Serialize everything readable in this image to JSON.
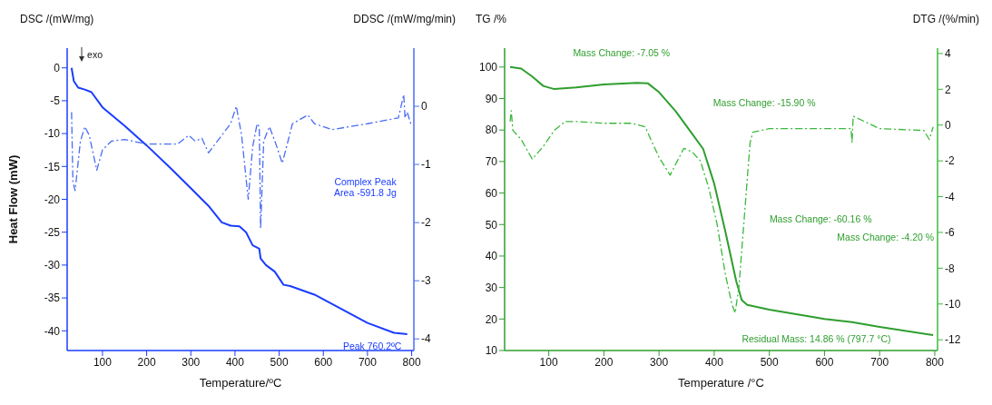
{
  "chart_data": [
    {
      "type": "line",
      "xlabel": "Temperature/ºC",
      "ylabel": "Heat Flow (mW)",
      "y2label": "DDSC /(mW/mg/min)",
      "xlim": [
        20,
        805
      ],
      "xticks": [
        100,
        200,
        300,
        400,
        500,
        600,
        700,
        800
      ],
      "ylim": [
        -43,
        3
      ],
      "yticks": [
        0,
        -5,
        -10,
        -15,
        -20,
        -25,
        -30,
        -35,
        -40
      ],
      "y2lim": [
        -4.2,
        1
      ],
      "y2ticks": [
        0,
        -1,
        -2,
        -3,
        -4
      ],
      "series": [
        {
          "color": "#1a3cff",
          "line_style": "solid",
          "x": [
            30,
            35,
            45,
            60,
            75,
            100,
            150,
            200,
            250,
            300,
            340,
            370,
            390,
            410,
            425,
            440,
            455,
            458,
            470,
            490,
            510,
            525,
            580,
            650,
            700,
            760,
            790
          ],
          "values": [
            0,
            -2,
            -3,
            -3.3,
            -3.7,
            -6,
            -8.8,
            -11.8,
            -15,
            -18.3,
            -21,
            -23.5,
            -24,
            -24.1,
            -25,
            -27,
            -27.5,
            -29,
            -30,
            -31,
            -33,
            -33.2,
            -34.5,
            -37,
            -38.8,
            -40.3,
            -40.5
          ]
        },
        {
          "color": "#4a6cf5",
          "line_style": "dashed",
          "axis": "y2",
          "x": [
            30,
            33,
            38,
            50,
            60,
            70,
            87,
            100,
            120,
            150,
            200,
            270,
            295,
            310,
            325,
            340,
            370,
            390,
            403,
            415,
            430,
            440,
            450,
            455,
            458,
            465,
            478,
            495,
            507,
            520,
            530,
            565,
            580,
            620,
            700,
            770,
            782,
            785,
            790,
            798
          ],
          "values": [
            -0.1,
            -1.3,
            -1.45,
            -0.6,
            -0.35,
            -0.5,
            -1.1,
            -0.75,
            -0.6,
            -0.57,
            -0.65,
            -0.65,
            -0.5,
            -0.6,
            -0.55,
            -0.8,
            -0.5,
            -0.3,
            0,
            -0.5,
            -1.6,
            -0.7,
            -0.3,
            -0.35,
            -2.1,
            -0.6,
            -0.35,
            -0.7,
            -0.98,
            -0.6,
            -0.3,
            -0.15,
            -0.3,
            -0.4,
            -0.3,
            -0.2,
            0.2,
            -0.2,
            -0.1,
            -0.3
          ]
        }
      ],
      "annotations": [
        "DSC /(mW/mg)",
        "exo",
        "Complex Peak Area -591.8 Jg",
        "Peak 760.2ºC"
      ]
    },
    {
      "type": "line",
      "xlabel": "Temperature /°C",
      "y2label": "DTG /(%/min)",
      "xlim": [
        20,
        805
      ],
      "xticks": [
        100,
        200,
        300,
        400,
        500,
        600,
        700,
        800
      ],
      "ylim": [
        10,
        106
      ],
      "yticks": [
        10,
        20,
        30,
        40,
        50,
        60,
        70,
        80,
        90,
        100
      ],
      "y2lim": [
        -12.6,
        4.3
      ],
      "y2ticks": [
        4,
        2,
        0,
        -2,
        -4,
        -6,
        -8,
        -10,
        -12
      ],
      "series": [
        {
          "color": "#2e9e2e",
          "line_style": "solid",
          "x": [
            30,
            50,
            70,
            90,
            110,
            150,
            200,
            260,
            280,
            300,
            330,
            358,
            380,
            400,
            420,
            440,
            450,
            460,
            500,
            600,
            650,
            700,
            797
          ],
          "values": [
            100,
            99.5,
            97,
            94,
            93,
            93.5,
            94.5,
            95,
            94.8,
            92,
            86,
            79.3,
            74,
            63,
            48,
            32,
            26,
            24.5,
            23,
            20,
            19,
            17.5,
            14.9
          ]
        },
        {
          "color": "#3cb83c",
          "line_style": "dashed",
          "axis": "y2",
          "x": [
            30,
            32,
            35,
            50,
            70,
            90,
            110,
            130,
            150,
            200,
            250,
            275,
            285,
            300,
            320,
            330,
            345,
            360,
            375,
            390,
            405,
            420,
            432,
            438,
            445,
            455,
            465,
            470,
            500,
            600,
            648,
            650,
            652,
            700,
            780,
            790,
            797
          ],
          "values": [
            0.2,
            0.8,
            -0.3,
            -0.8,
            -1.9,
            -1.2,
            -0.3,
            0.2,
            0.2,
            0.1,
            0.1,
            -0.1,
            -0.8,
            -1.8,
            -2.8,
            -2.2,
            -1.3,
            -1.5,
            -2,
            -3.5,
            -5.5,
            -8.3,
            -10,
            -10.5,
            -9,
            -5,
            -1,
            -0.4,
            -0.2,
            -0.2,
            -0.2,
            -1,
            0.5,
            -0.2,
            -0.3,
            -0.8,
            -0.1
          ]
        }
      ],
      "annotations": [
        "TG /%",
        "Mass Change: -7.05 %",
        "Mass Change: -15.90 %",
        "Mass Change: -60.16 %",
        "Mass Change: -4.20 %",
        "Residual Mass: 14.86 % (797.7 °C)"
      ]
    }
  ]
}
